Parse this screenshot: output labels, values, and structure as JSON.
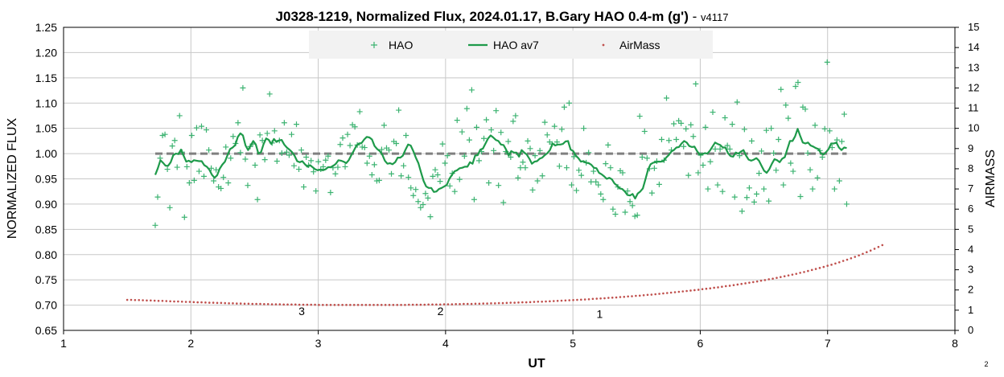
{
  "chart_data": {
    "type": "scatter",
    "title": "J0328-1219, Normalized Flux, 2024.01.17, B.Gary HAO 0.4-m (g')",
    "title_suffix": " - ",
    "version": "v4117",
    "xlabel": "UT",
    "ylabel": "NORMALIZED FLUX",
    "y2label": "AIRMASS",
    "xlim": [
      1,
      8
    ],
    "ylim": [
      0.65,
      1.25
    ],
    "y2lim": [
      0,
      15
    ],
    "x_ticks": [
      "1",
      "2",
      "3",
      "4",
      "5",
      "6",
      "7",
      "8"
    ],
    "y_ticks": [
      "0.65",
      "0.70",
      "0.75",
      "0.80",
      "0.85",
      "0.90",
      "0.95",
      "1.00",
      "1.05",
      "1.10",
      "1.15",
      "1.20",
      "1.25"
    ],
    "y2_ticks": [
      "0",
      "1",
      "2",
      "3",
      "4",
      "5",
      "6",
      "7",
      "8",
      "9",
      "10",
      "11",
      "12",
      "13",
      "14",
      "15"
    ],
    "grid": true,
    "legend_position": "top-center",
    "page_number": "2",
    "reference_line": {
      "y": 1.0,
      "x_range": [
        1.72,
        7.15
      ],
      "color": "#7f7f7f"
    },
    "annotations": [
      {
        "text": "3",
        "x": 2.87,
        "y": 0.68
      },
      {
        "text": "2",
        "x": 3.96,
        "y": 0.68
      },
      {
        "text": "1",
        "x": 5.21,
        "y": 0.675
      }
    ],
    "series": [
      {
        "name": "HAO",
        "kind": "scatter",
        "color": "#3cb371",
        "x_start": 1.72,
        "x_end": 7.15,
        "values": [
          0.858,
          0.914,
          0.991,
          1.036,
          1.038,
          0.969,
          0.893,
          1.015,
          1.026,
          0.973,
          1.075,
          1.003,
          0.874,
          0.974,
          0.942,
          1.036,
          0.947,
          1.051,
          0.965,
          1.054,
          0.955,
          1.047,
          1.007,
          0.971,
          0.946,
          0.968,
          0.934,
          0.931,
          0.953,
          1.013,
          0.942,
          0.991,
          1.034,
          1.02,
          1.061,
          1.002,
          1.13,
          0.989,
          0.937,
          1.014,
          1.019,
          0.977,
          0.909,
          1.037,
          1.026,
          0.988,
          1.04,
          1.118,
          1.021,
          1.045,
          0.985,
          1.026,
          1.001,
          1.061,
          1.003,
          0.997,
          1.038,
          0.976,
          1.058,
          0.969,
          1.007,
          0.934,
          0.993,
          0.977,
          0.986,
          0.964,
          0.926,
          0.984,
          0.969,
          0.974,
          0.987,
          0.995,
          0.923,
          0.972,
          0.96,
          0.973,
          1.018,
          1.031,
          0.974,
          1.038,
          1.016,
          1.057,
          1.053,
          1.017,
          1.083,
          1.013,
          1.012,
          0.981,
          0.995,
          0.958,
          0.978,
          0.946,
          0.947,
          1.008,
          1.056,
          1.011,
          1.007,
          0.96,
          1.024,
          1.02,
          1.086,
          0.956,
          0.976,
          1.036,
          0.953,
          0.932,
          0.917,
          0.929,
          0.905,
          0.893,
          0.899,
          0.921,
          0.912,
          0.875,
          0.955,
          0.968,
          0.958,
          0.945,
          1.019,
          0.981,
          0.996,
          0.936,
          0.961,
          0.925,
          1.066,
          0.949,
          1.043,
          0.995,
          1.089,
          1.027,
          1.126,
          0.909,
          1.052,
          0.986,
          1.004,
          1.03,
          1.067,
          0.942,
          1.047,
          1.006,
          1.085,
          0.937,
          1.042,
          0.903,
          1.004,
          1.024,
          0.993,
          1.064,
          1.075,
          0.952,
          0.972,
          0.983,
          0.972,
          1.025,
          1.01,
          0.928,
          0.996,
          0.946,
          1.006,
          0.956,
          1.062,
          1.037,
          1.023,
          1.019,
          1.054,
          1.023,
          0.975,
          1.048,
          1.092,
          0.972,
          1.1,
          0.938,
          0.994,
          0.927,
          0.967,
          0.957,
          1.05,
          0.982,
          1.002,
          0.944,
          0.965,
          0.944,
          0.938,
          0.92,
          0.909,
          0.98,
          1.017,
          0.972,
          0.89,
          0.88,
          0.934,
          0.966,
          0.962,
          0.884,
          0.926,
          0.905,
          0.897,
          0.876,
          0.878,
          1.074,
          0.993,
          1.044,
          0.991,
          0.97,
          0.922,
          0.971,
          0.985,
          0.939,
          1.028,
          0.987,
          1.11,
          1.026,
          1.007,
          1.059,
          1.028,
          1.065,
          1.06,
          1.014,
          1.049,
          0.957,
          1.057,
          1.034,
          1.138,
          0.962,
          0.997,
          0.977,
          1.052,
          0.93,
          0.984,
          1.082,
          1.009,
          0.938,
          1.009,
          0.925,
          1.071,
          1.016,
          1.009,
          1.058,
          0.914,
          1.102,
          0.996,
          0.886,
          1.048,
          0.913,
          0.932,
          1.025,
          0.904,
          0.92,
          0.961,
          1.005,
          0.93,
          1.046,
          0.906,
          1.05,
          1.001,
          0.967,
          1.028,
          1.127,
          0.938,
          1.096,
          1.07,
          0.981,
          0.965,
          1.133,
          1.141,
          0.915,
          1.092,
          1.088,
          1.001,
          0.968,
          0.93,
          1.056,
          0.952,
          1.006,
          0.993,
          1.049,
          1.181,
          1.045,
          1.012,
          0.93,
          1.027,
          0.946,
          1.024,
          1.078,
          0.9
        ]
      },
      {
        "name": "HAO av7",
        "kind": "line",
        "color": "#1e9a4a",
        "x_start": 1.72,
        "x_end": 7.15,
        "values": [
          0.958,
          0.971,
          0.987,
          0.982,
          0.976,
          0.976,
          0.983,
          0.997,
          1.0,
          0.999,
          1.008,
          0.996,
          0.984,
          0.986,
          0.983,
          0.987,
          0.986,
          0.985,
          0.985,
          0.977,
          0.974,
          0.968,
          0.958,
          0.952,
          0.957,
          0.97,
          0.978,
          0.984,
          0.997,
          1.009,
          1.012,
          1.017,
          1.033,
          1.04,
          1.036,
          1.016,
          1.007,
          1.016,
          1.025,
          1.018,
          1.0,
          1.003,
          1.019,
          1.03,
          1.027,
          1.019,
          1.029,
          1.023,
          1.026,
          1.027,
          1.018,
          1.012,
          1.008,
          1.003,
          0.996,
          0.985,
          0.983,
          0.985,
          0.979,
          0.974,
          0.977,
          0.973,
          0.969,
          0.967,
          0.968,
          0.967,
          0.969,
          0.973,
          0.973,
          0.976,
          0.98,
          0.987,
          0.986,
          0.984,
          0.981,
          0.987,
          0.997,
          1.006,
          1.016,
          1.02,
          1.021,
          1.028,
          1.033,
          1.032,
          1.028,
          1.015,
          1.009,
          1.005,
          0.998,
          0.986,
          0.98,
          0.981,
          0.979,
          0.983,
          0.992,
          0.992,
          0.996,
          1.008,
          1.018,
          1.016,
          1.005,
          0.992,
          0.981,
          0.963,
          0.946,
          0.935,
          0.932,
          0.932,
          0.924,
          0.925,
          0.93,
          0.932,
          0.935,
          0.938,
          0.95,
          0.958,
          0.965,
          0.967,
          0.971,
          0.972,
          0.974,
          0.974,
          0.983,
          0.98,
          0.996,
          0.997,
          1.008,
          1.01,
          1.02,
          1.03,
          1.036,
          1.032,
          1.027,
          1.025,
          1.018,
          1.017,
          1.008,
          0.996,
          1.005,
          1.002,
          1.002,
          0.994,
          1.007,
          1.002,
          0.998,
          0.99,
          0.98,
          0.984,
          0.985,
          0.99,
          0.992,
          0.997,
          1.001,
          1.007,
          1.02,
          1.016,
          1.018,
          1.018,
          1.019,
          1.024,
          1.025,
          1.008,
          1.005,
          0.996,
          0.991,
          0.984,
          0.985,
          0.982,
          0.981,
          0.978,
          0.972,
          0.971,
          0.962,
          0.959,
          0.955,
          0.95,
          0.952,
          0.949,
          0.941,
          0.937,
          0.931,
          0.93,
          0.925,
          0.918,
          0.917,
          0.92,
          0.911,
          0.921,
          0.925,
          0.931,
          0.949,
          0.968,
          0.979,
          0.982,
          0.983,
          0.984,
          0.984,
          0.985,
          0.992,
          0.997,
          1.004,
          1.007,
          1.012,
          1.013,
          1.02,
          1.025,
          1.022,
          1.015,
          1.013,
          1.014,
          1.005,
          0.998,
          0.999,
          1.001,
          1.0,
          1.006,
          1.014,
          1.022,
          1.019,
          1.017,
          1.012,
          1.012,
          1.001,
          0.995,
          0.994,
          1.002,
          1.0,
          1.004,
          1.007,
          0.996,
          0.988,
          0.986,
          0.988,
          0.991,
          0.986,
          0.976,
          0.966,
          0.962,
          0.969,
          0.98,
          0.989,
          0.987,
          0.983,
          0.99,
          0.993,
          1.009,
          1.025,
          1.025,
          1.034,
          1.049,
          1.035,
          1.022,
          1.02,
          1.022,
          1.016,
          1.014,
          1.011,
          1.009,
          1.001,
          0.998,
          1.003,
          1.009,
          1.02,
          1.02,
          1.022,
          1.012,
          1.007,
          1.012,
          1.011
        ]
      },
      {
        "name": "AirMass",
        "kind": "scatter",
        "axis": "y2",
        "color": "#c0504d",
        "x_start": 1.5,
        "x_end": 7.43,
        "values": [
          1.51,
          1.51,
          1.5,
          1.5,
          1.49,
          1.48,
          1.48,
          1.47,
          1.46,
          1.46,
          1.45,
          1.44,
          1.43,
          1.43,
          1.42,
          1.41,
          1.41,
          1.4,
          1.39,
          1.39,
          1.38,
          1.37,
          1.37,
          1.36,
          1.36,
          1.35,
          1.34,
          1.34,
          1.33,
          1.33,
          1.32,
          1.32,
          1.31,
          1.31,
          1.31,
          1.3,
          1.3,
          1.29,
          1.29,
          1.29,
          1.28,
          1.28,
          1.28,
          1.28,
          1.27,
          1.27,
          1.27,
          1.27,
          1.27,
          1.26,
          1.26,
          1.26,
          1.26,
          1.26,
          1.26,
          1.26,
          1.26,
          1.26,
          1.26,
          1.26,
          1.26,
          1.26,
          1.26,
          1.26,
          1.26,
          1.26,
          1.26,
          1.26,
          1.26,
          1.26,
          1.26,
          1.26,
          1.27,
          1.27,
          1.27,
          1.27,
          1.27,
          1.28,
          1.28,
          1.28,
          1.28,
          1.29,
          1.29,
          1.29,
          1.3,
          1.3,
          1.31,
          1.31,
          1.31,
          1.32,
          1.32,
          1.33,
          1.33,
          1.34,
          1.34,
          1.35,
          1.35,
          1.36,
          1.37,
          1.37,
          1.38,
          1.39,
          1.39,
          1.4,
          1.41,
          1.42,
          1.42,
          1.43,
          1.44,
          1.45,
          1.46,
          1.47,
          1.48,
          1.49,
          1.5,
          1.51,
          1.52,
          1.53,
          1.54,
          1.56,
          1.57,
          1.58,
          1.59,
          1.61,
          1.62,
          1.63,
          1.65,
          1.66,
          1.68,
          1.69,
          1.71,
          1.72,
          1.74,
          1.76,
          1.77,
          1.79,
          1.81,
          1.83,
          1.85,
          1.87,
          1.89,
          1.91,
          1.93,
          1.95,
          1.97,
          1.99,
          2.01,
          2.04,
          2.06,
          2.08,
          2.11,
          2.13,
          2.16,
          2.19,
          2.21,
          2.24,
          2.27,
          2.3,
          2.33,
          2.36,
          2.39,
          2.42,
          2.46,
          2.49,
          2.53,
          2.56,
          2.6,
          2.64,
          2.68,
          2.72,
          2.76,
          2.8,
          2.85,
          2.89,
          2.94,
          2.99,
          3.04,
          3.09,
          3.14,
          3.2,
          3.25,
          3.31,
          3.37,
          3.44,
          3.5,
          3.57,
          3.64,
          3.71,
          3.79,
          3.87,
          3.95,
          4.04,
          4.13,
          4.22
        ]
      }
    ]
  }
}
